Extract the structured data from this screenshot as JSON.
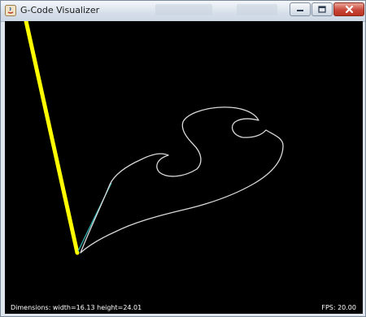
{
  "window": {
    "title": "G-Code Visualizer",
    "controls": {
      "minimize_icon": "minimize-icon",
      "maximize_icon": "maximize-icon",
      "close_icon": "close-icon"
    }
  },
  "viewport": {
    "background_color": "#000000",
    "tool_color": "#ffff00",
    "toolpath_color": "#d9d9d9",
    "rapid_move_color": "#33b3b3"
  },
  "status": {
    "dimensions": "Dimensions: width=16.13 height=24.01",
    "fps": "FPS: 20.00"
  }
}
